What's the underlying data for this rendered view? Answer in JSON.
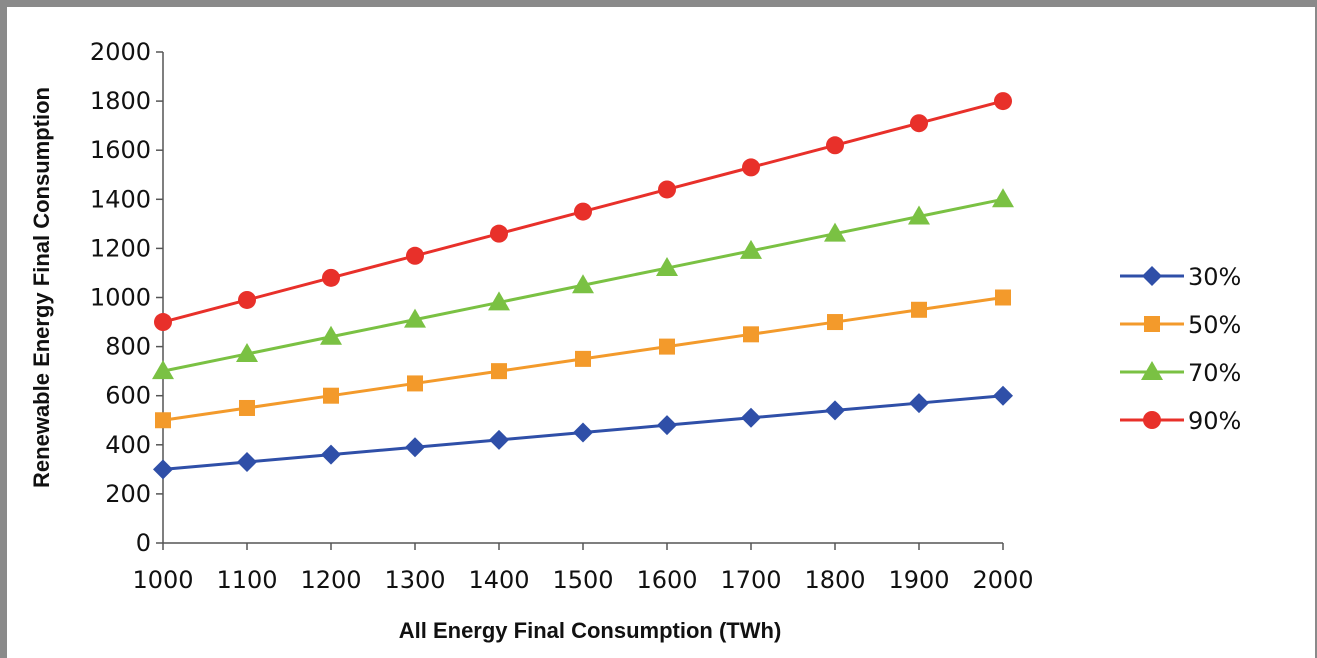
{
  "chart_data": {
    "type": "line",
    "xlabel": "All Energy Final Consumption (TWh)",
    "ylabel": "Renewable Energy Final Consumption",
    "x": [
      1000,
      1100,
      1200,
      1300,
      1400,
      1500,
      1600,
      1700,
      1800,
      1900,
      2000
    ],
    "xlim": [
      1000,
      2000
    ],
    "ylim": [
      0,
      2000
    ],
    "yticks": [
      0,
      200,
      400,
      600,
      800,
      1000,
      1200,
      1400,
      1600,
      1800,
      2000
    ],
    "grid": false,
    "legend_position": "right",
    "series": [
      {
        "name": "30%",
        "marker": "diamond",
        "color": "#2f4fa8",
        "values": [
          300,
          330,
          360,
          390,
          420,
          450,
          480,
          510,
          540,
          570,
          600
        ]
      },
      {
        "name": "50%",
        "marker": "square",
        "color": "#f39a2b",
        "values": [
          500,
          550,
          600,
          650,
          700,
          750,
          800,
          850,
          900,
          950,
          1000
        ]
      },
      {
        "name": "70%",
        "marker": "triangle",
        "color": "#7ac143",
        "values": [
          700,
          770,
          840,
          910,
          980,
          1050,
          1120,
          1190,
          1260,
          1330,
          1400
        ]
      },
      {
        "name": "90%",
        "marker": "circle",
        "color": "#e8302a",
        "values": [
          900,
          990,
          1080,
          1170,
          1260,
          1350,
          1440,
          1530,
          1620,
          1710,
          1800
        ]
      }
    ]
  }
}
